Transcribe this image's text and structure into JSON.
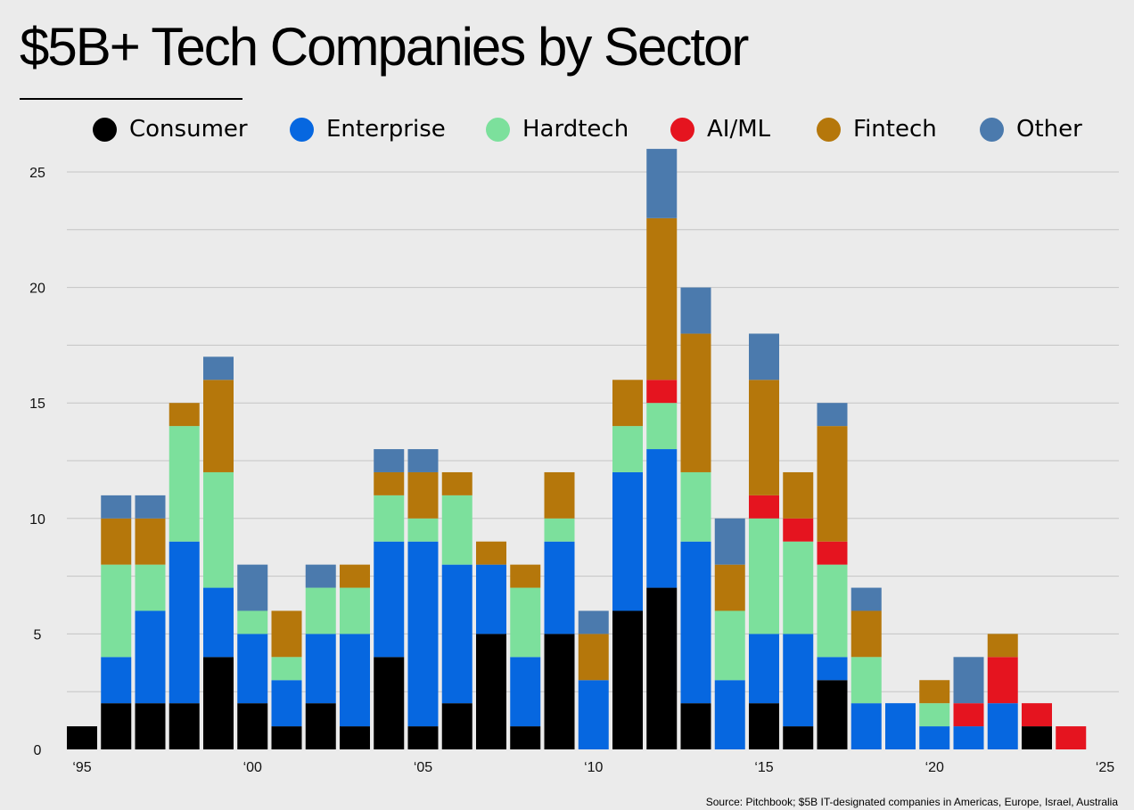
{
  "chart_data": {
    "type": "bar",
    "stacked": true,
    "title": "$5B+ Tech Companies by Sector",
    "source": "Source: Pitchbook; $5B IT-designated companies in Americas, Europe, Israel, Australia",
    "xlabel": "",
    "ylabel": "",
    "ylim": [
      0,
      25
    ],
    "yticks": [
      0,
      5,
      10,
      15,
      20,
      25
    ],
    "xtick_labels": [
      {
        "year": 1995,
        "label": "‘95"
      },
      {
        "year": 2000,
        "label": "‘00"
      },
      {
        "year": 2005,
        "label": "‘05"
      },
      {
        "year": 2010,
        "label": "‘10"
      },
      {
        "year": 2015,
        "label": "‘15"
      },
      {
        "year": 2020,
        "label": "‘20"
      },
      {
        "year": 2025,
        "label": "‘25"
      }
    ],
    "legend_position": "top",
    "grid": true,
    "categories": [
      1995,
      1996,
      1997,
      1998,
      1999,
      2000,
      2001,
      2002,
      2003,
      2004,
      2005,
      2006,
      2007,
      2008,
      2009,
      2010,
      2011,
      2012,
      2013,
      2014,
      2015,
      2016,
      2017,
      2018,
      2019,
      2020,
      2021,
      2022,
      2023,
      2024
    ],
    "series": [
      {
        "name": "Consumer",
        "color": "#000000",
        "values": [
          1,
          2,
          2,
          2,
          4,
          2,
          1,
          2,
          1,
          4,
          1,
          2,
          5,
          1,
          5,
          0,
          6,
          7,
          2,
          0,
          2,
          1,
          3,
          0,
          0,
          0,
          0,
          0,
          1,
          0
        ]
      },
      {
        "name": "Enterprise",
        "color": "#0667e0",
        "values": [
          0,
          2,
          4,
          7,
          3,
          3,
          2,
          3,
          4,
          5,
          8,
          6,
          3,
          3,
          4,
          3,
          6,
          6,
          7,
          3,
          3,
          4,
          1,
          2,
          2,
          1,
          1,
          2,
          0,
          0
        ]
      },
      {
        "name": "Hardtech",
        "color": "#7ce09c",
        "values": [
          0,
          4,
          2,
          5,
          5,
          1,
          1,
          2,
          2,
          2,
          1,
          3,
          0,
          3,
          1,
          0,
          2,
          2,
          3,
          3,
          5,
          4,
          4,
          2,
          0,
          1,
          0,
          0,
          0,
          0
        ]
      },
      {
        "name": "AI/ML",
        "color": "#e5141f",
        "values": [
          0,
          0,
          0,
          0,
          0,
          0,
          0,
          0,
          0,
          0,
          0,
          0,
          0,
          0,
          0,
          0,
          0,
          1,
          0,
          0,
          1,
          1,
          1,
          0,
          0,
          0,
          1,
          2,
          1,
          1
        ]
      },
      {
        "name": "Fintech",
        "color": "#b5770b",
        "values": [
          0,
          2,
          2,
          1,
          4,
          0,
          2,
          0,
          1,
          1,
          2,
          1,
          1,
          1,
          2,
          2,
          2,
          7,
          6,
          2,
          5,
          2,
          5,
          2,
          0,
          1,
          0,
          1,
          0,
          0
        ]
      },
      {
        "name": "Other",
        "color": "#4b7aad",
        "values": [
          0,
          1,
          1,
          0,
          1,
          2,
          0,
          1,
          0,
          1,
          1,
          0,
          0,
          0,
          0,
          1,
          0,
          3,
          2,
          2,
          2,
          0,
          1,
          1,
          0,
          0,
          2,
          0,
          0,
          0
        ]
      }
    ]
  }
}
